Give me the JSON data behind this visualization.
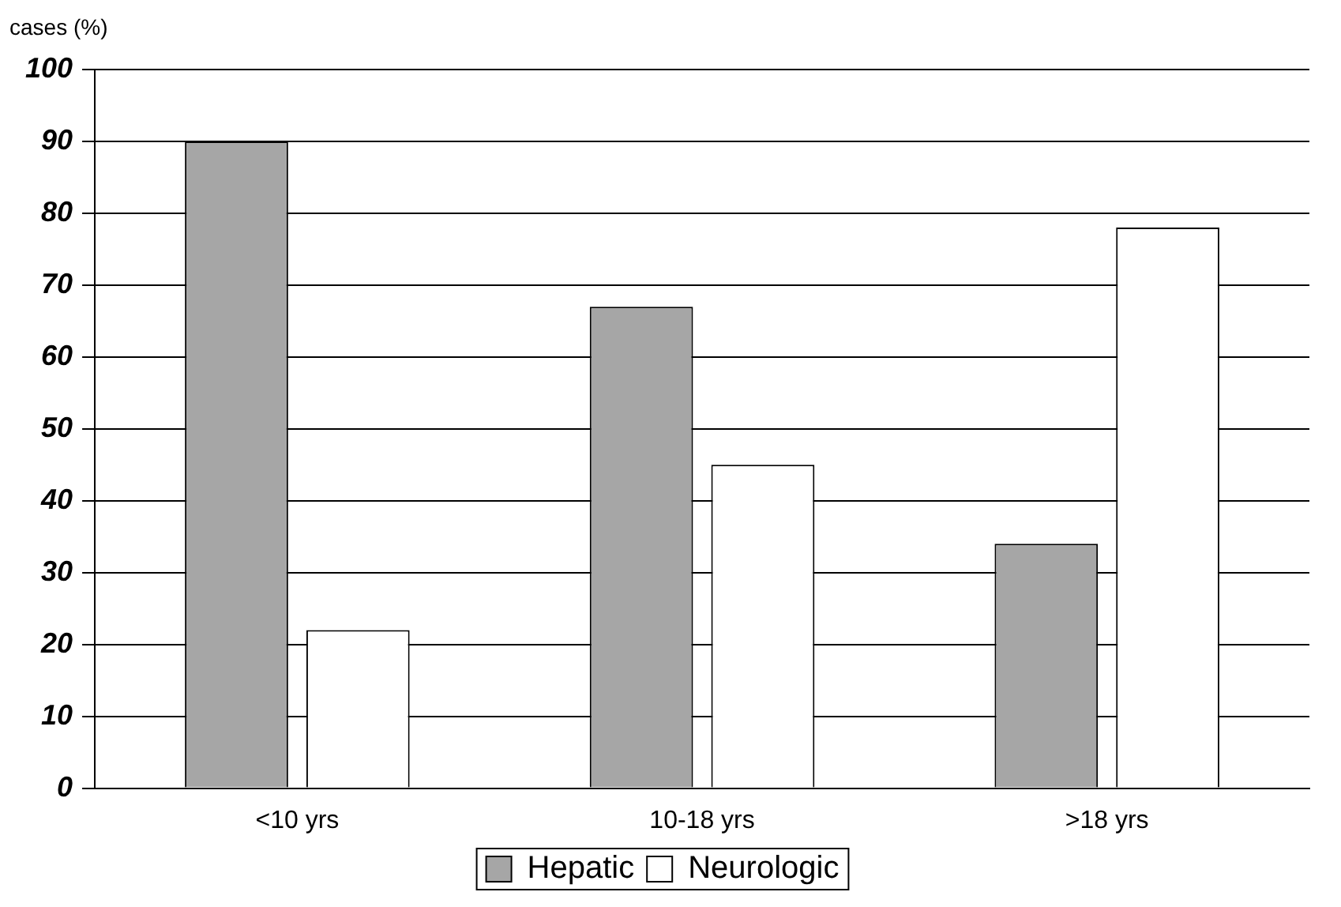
{
  "chart_data": {
    "type": "bar",
    "ylabel": "cases (%)",
    "categories": [
      "<10 yrs",
      "10-18 yrs",
      ">18 yrs"
    ],
    "series": [
      {
        "name": "Hepatic",
        "color": "#a6a6a6",
        "values": [
          90,
          67,
          34
        ]
      },
      {
        "name": "Neurologic",
        "color": "#ffffff",
        "values": [
          22,
          45,
          78
        ]
      }
    ],
    "ylim": [
      0,
      100
    ],
    "yticks": [
      0,
      10,
      20,
      30,
      40,
      50,
      60,
      70,
      80,
      90,
      100
    ],
    "grid": "y",
    "legend": "bottom"
  }
}
